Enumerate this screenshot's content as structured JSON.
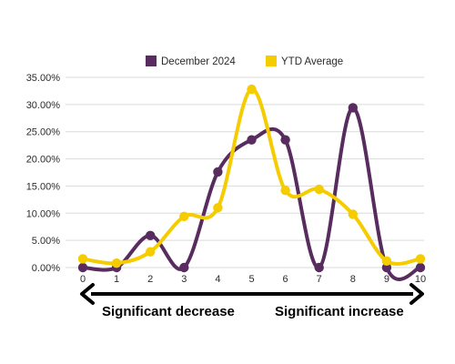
{
  "chart_data": {
    "type": "line",
    "x": [
      0,
      1,
      2,
      3,
      4,
      5,
      6,
      7,
      8,
      9,
      10
    ],
    "series": [
      {
        "name": "December 2024",
        "color": "#582c5e",
        "values": [
          0.0,
          0.0,
          5.9,
          0.0,
          17.6,
          23.5,
          23.5,
          0.0,
          29.4,
          0.0,
          0.0
        ]
      },
      {
        "name": "YTD Average",
        "color": "#f5cc00",
        "values": [
          1.6,
          0.8,
          2.9,
          9.4,
          11.0,
          32.8,
          14.2,
          14.4,
          9.8,
          1.2,
          1.6
        ]
      }
    ],
    "ylim": [
      0,
      35
    ],
    "yticks": [
      "0.00%",
      "5.00%",
      "10.00%",
      "15.00%",
      "20.00%",
      "25.00%",
      "30.00%",
      "35.00%"
    ],
    "xticks": [
      "0",
      "1",
      "2",
      "3",
      "4",
      "5",
      "6",
      "7",
      "8",
      "9",
      "10"
    ],
    "grid": "horizontal",
    "legend_position": "top-center",
    "annotations": {
      "left": "Significant decrease",
      "right": "Significant increase"
    }
  }
}
